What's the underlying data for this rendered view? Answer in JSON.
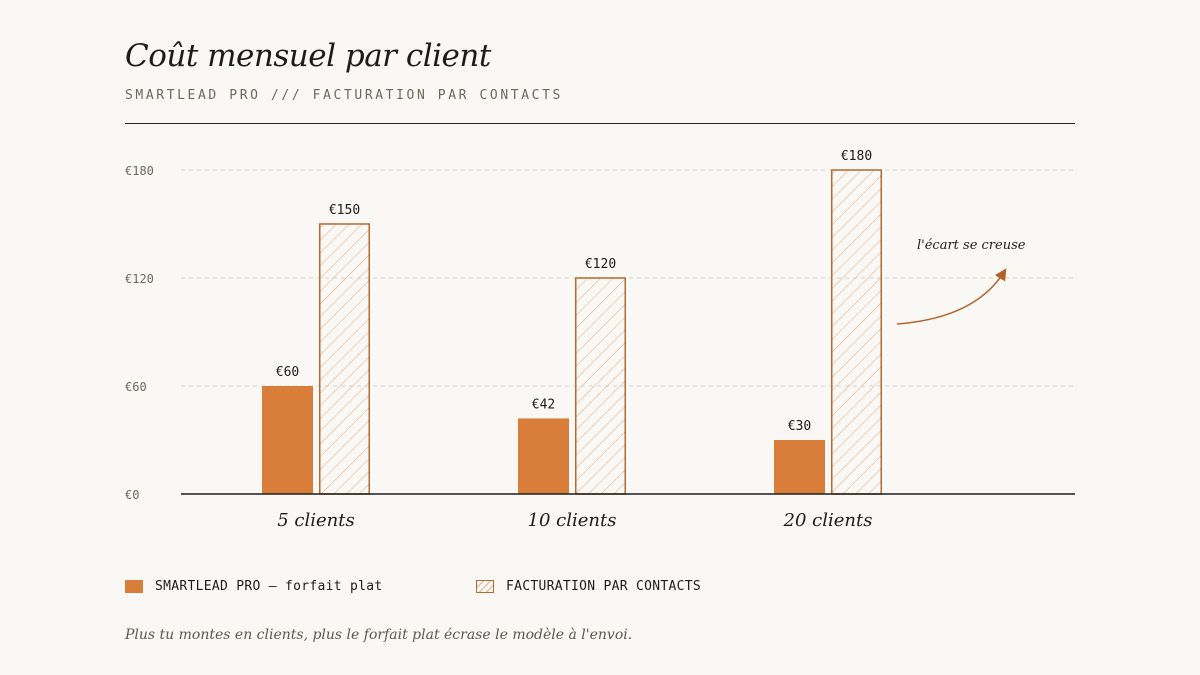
{
  "title": "Coût mensuel par client",
  "subtitle": "SMARTLEAD PRO /// FACTURATION PAR CONTACTS",
  "footnote": "Plus tu montes en clients, plus le forfait plat écrase le modèle à l'envoi.",
  "annotation": "l'écart se creuse",
  "legend": {
    "flat": "SMARTLEAD PRO — forfait plat",
    "contacts": "FACTURATION PAR CONTACTS"
  },
  "colors": {
    "flat": "#d97e3a",
    "contacts_stroke": "#b56a2f",
    "contacts_hatch": "#e2b48e",
    "annotation": "#b5602a",
    "gridline": "#d8d2c8",
    "axis": "#1f1b16"
  },
  "chart_data": {
    "type": "bar",
    "categories": [
      "5 clients",
      "10 clients",
      "20 clients"
    ],
    "series": [
      {
        "name": "SMARTLEAD PRO — forfait plat",
        "values": [
          60,
          42,
          30
        ],
        "labels": [
          "€60",
          "€42",
          "€30"
        ]
      },
      {
        "name": "FACTURATION PAR CONTACTS",
        "values": [
          150,
          120,
          180
        ],
        "labels": [
          "€150",
          "€120",
          "€180"
        ]
      }
    ],
    "yticks": [
      0,
      60,
      120,
      180
    ],
    "ytick_labels": [
      "€0",
      "€60",
      "€120",
      "€180"
    ],
    "ylim": [
      0,
      180
    ],
    "grid": true,
    "legend_position": "bottom-left"
  }
}
